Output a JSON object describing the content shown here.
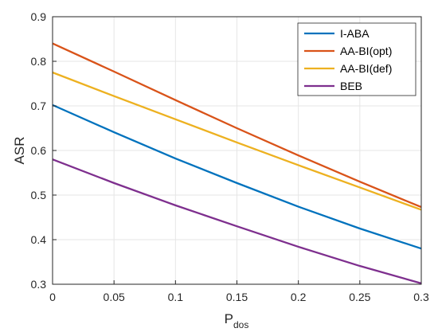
{
  "chart_data": {
    "type": "line",
    "xlabel": "P",
    "xlabel_sub": "dos",
    "ylabel": "ASR",
    "xlim": [
      0,
      0.3
    ],
    "ylim": [
      0.3,
      0.9
    ],
    "xticks": [
      "0",
      "0.05",
      "0.1",
      "0.15",
      "0.2",
      "0.25",
      "0.3"
    ],
    "yticks": [
      "0.3",
      "0.4",
      "0.5",
      "0.6",
      "0.7",
      "0.8",
      "0.9"
    ],
    "grid": true,
    "legend_position": "top-right",
    "series": [
      {
        "name": "I-ABA",
        "color": "#0072BD",
        "x": [
          0,
          0.05,
          0.1,
          0.15,
          0.2,
          0.25,
          0.3
        ],
        "y": [
          0.702,
          0.641,
          0.582,
          0.527,
          0.474,
          0.425,
          0.38
        ]
      },
      {
        "name": "AA-BI(opt)",
        "color": "#D95319",
        "x": [
          0,
          0.05,
          0.1,
          0.15,
          0.2,
          0.25,
          0.3
        ],
        "y": [
          0.84,
          0.777,
          0.713,
          0.65,
          0.589,
          0.53,
          0.473
        ]
      },
      {
        "name": "AA-BI(def)",
        "color": "#EDB120",
        "x": [
          0,
          0.05,
          0.1,
          0.15,
          0.2,
          0.25,
          0.3
        ],
        "y": [
          0.775,
          0.722,
          0.67,
          0.618,
          0.567,
          0.517,
          0.467
        ]
      },
      {
        "name": "BEB",
        "color": "#7E2F8E",
        "x": [
          0,
          0.05,
          0.1,
          0.15,
          0.2,
          0.25,
          0.3
        ],
        "y": [
          0.58,
          0.527,
          0.477,
          0.43,
          0.384,
          0.341,
          0.302
        ]
      }
    ]
  }
}
